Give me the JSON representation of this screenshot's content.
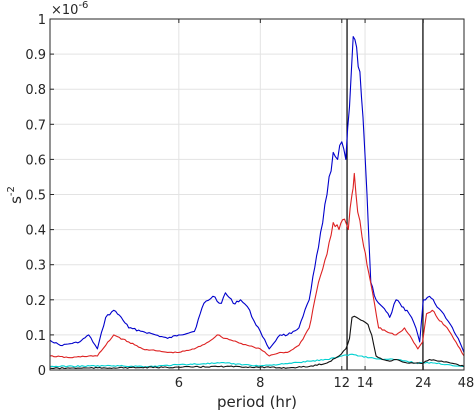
{
  "chart_data": {
    "type": "line",
    "xlabel": "period (hr)",
    "ylabel": "s",
    "ylabel_exponent": "-2",
    "y_multiplier_base": "×10",
    "y_multiplier_exponent": "-6",
    "x_scale": "reciprocal",
    "xlim": [
      4.3,
      48
    ],
    "ylim": [
      0,
      1
    ],
    "grid": true,
    "legend": "none",
    "x_ticks": [
      6,
      8,
      12,
      14,
      24,
      48
    ],
    "y_ticks": [
      0,
      0.1,
      0.2,
      0.3,
      0.4,
      0.5,
      0.6,
      0.7,
      0.8,
      0.9,
      1
    ],
    "y_tick_labels": [
      "0",
      "0.1",
      "0.2",
      "0.3",
      "0.4",
      "0.5",
      "0.6",
      "0.7",
      "0.8",
      "0.9",
      "1"
    ],
    "vertical_lines": [
      12.4,
      23.9
    ],
    "series": [
      {
        "color": "#0000cc",
        "points": [
          [
            4.3,
            0.085
          ],
          [
            4.4,
            0.07
          ],
          [
            4.5,
            0.075
          ],
          [
            4.6,
            0.08
          ],
          [
            4.7,
            0.1
          ],
          [
            4.8,
            0.06
          ],
          [
            4.9,
            0.15
          ],
          [
            5.0,
            0.17
          ],
          [
            5.1,
            0.15
          ],
          [
            5.2,
            0.12
          ],
          [
            5.4,
            0.11
          ],
          [
            5.6,
            0.1
          ],
          [
            5.8,
            0.09
          ],
          [
            6.0,
            0.1
          ],
          [
            6.3,
            0.11
          ],
          [
            6.5,
            0.19
          ],
          [
            6.7,
            0.21
          ],
          [
            6.9,
            0.19
          ],
          [
            7.0,
            0.22
          ],
          [
            7.2,
            0.19
          ],
          [
            7.4,
            0.2
          ],
          [
            7.6,
            0.18
          ],
          [
            7.8,
            0.14
          ],
          [
            8.0,
            0.11
          ],
          [
            8.3,
            0.06
          ],
          [
            8.7,
            0.1
          ],
          [
            9.0,
            0.1
          ],
          [
            9.5,
            0.12
          ],
          [
            10.0,
            0.2
          ],
          [
            10.5,
            0.35
          ],
          [
            11.0,
            0.5
          ],
          [
            11.4,
            0.62
          ],
          [
            11.7,
            0.6
          ],
          [
            12.0,
            0.65
          ],
          [
            12.3,
            0.6
          ],
          [
            12.6,
            0.75
          ],
          [
            12.9,
            0.95
          ],
          [
            13.2,
            0.92
          ],
          [
            13.5,
            0.85
          ],
          [
            13.8,
            0.72
          ],
          [
            14.2,
            0.5
          ],
          [
            14.6,
            0.25
          ],
          [
            15.2,
            0.2
          ],
          [
            16.0,
            0.18
          ],
          [
            17.0,
            0.15
          ],
          [
            18.0,
            0.2
          ],
          [
            19.0,
            0.18
          ],
          [
            20.0,
            0.17
          ],
          [
            21.0,
            0.15
          ],
          [
            22.0,
            0.12
          ],
          [
            23.0,
            0.08
          ],
          [
            24.0,
            0.2
          ],
          [
            26.0,
            0.21
          ],
          [
            28.0,
            0.19
          ],
          [
            32.0,
            0.16
          ],
          [
            36.0,
            0.13
          ],
          [
            42.0,
            0.09
          ],
          [
            48.0,
            0.05
          ]
        ]
      },
      {
        "color": "#dd2222",
        "points": [
          [
            4.3,
            0.04
          ],
          [
            4.5,
            0.035
          ],
          [
            4.7,
            0.04
          ],
          [
            4.8,
            0.04
          ],
          [
            4.9,
            0.07
          ],
          [
            5.0,
            0.1
          ],
          [
            5.2,
            0.08
          ],
          [
            5.4,
            0.06
          ],
          [
            5.6,
            0.055
          ],
          [
            5.8,
            0.05
          ],
          [
            6.0,
            0.05
          ],
          [
            6.3,
            0.06
          ],
          [
            6.6,
            0.08
          ],
          [
            6.8,
            0.1
          ],
          [
            7.0,
            0.09
          ],
          [
            7.3,
            0.08
          ],
          [
            7.6,
            0.07
          ],
          [
            8.0,
            0.06
          ],
          [
            8.3,
            0.04
          ],
          [
            8.7,
            0.05
          ],
          [
            9.0,
            0.05
          ],
          [
            9.5,
            0.07
          ],
          [
            10.0,
            0.12
          ],
          [
            10.5,
            0.25
          ],
          [
            11.0,
            0.33
          ],
          [
            11.4,
            0.42
          ],
          [
            11.8,
            0.4
          ],
          [
            12.2,
            0.43
          ],
          [
            12.5,
            0.4
          ],
          [
            12.8,
            0.5
          ],
          [
            13.0,
            0.56
          ],
          [
            13.3,
            0.45
          ],
          [
            13.7,
            0.38
          ],
          [
            14.2,
            0.3
          ],
          [
            14.8,
            0.22
          ],
          [
            15.5,
            0.12
          ],
          [
            16.5,
            0.11
          ],
          [
            18.0,
            0.1
          ],
          [
            19.5,
            0.12
          ],
          [
            21.0,
            0.09
          ],
          [
            22.5,
            0.06
          ],
          [
            23.8,
            0.08
          ],
          [
            25.0,
            0.16
          ],
          [
            27.0,
            0.17
          ],
          [
            30.0,
            0.14
          ],
          [
            34.0,
            0.12
          ],
          [
            40.0,
            0.08
          ],
          [
            48.0,
            0.04
          ]
        ]
      },
      {
        "color": "#00d0d0",
        "points": [
          [
            4.3,
            0.01
          ],
          [
            5.0,
            0.012
          ],
          [
            5.5,
            0.01
          ],
          [
            6.0,
            0.015
          ],
          [
            6.5,
            0.018
          ],
          [
            7.0,
            0.02
          ],
          [
            7.5,
            0.015
          ],
          [
            8.0,
            0.012
          ],
          [
            9.0,
            0.018
          ],
          [
            10.0,
            0.025
          ],
          [
            11.0,
            0.03
          ],
          [
            12.0,
            0.04
          ],
          [
            12.8,
            0.045
          ],
          [
            13.5,
            0.04
          ],
          [
            14.5,
            0.035
          ],
          [
            16.0,
            0.03
          ],
          [
            18.0,
            0.03
          ],
          [
            20.0,
            0.025
          ],
          [
            22.0,
            0.02
          ],
          [
            24.0,
            0.02
          ],
          [
            28.0,
            0.02
          ],
          [
            35.0,
            0.015
          ],
          [
            48.0,
            0.01
          ]
        ]
      },
      {
        "color": "#111111",
        "points": [
          [
            4.3,
            0.005
          ],
          [
            5.0,
            0.006
          ],
          [
            6.0,
            0.008
          ],
          [
            7.0,
            0.01
          ],
          [
            8.0,
            0.008
          ],
          [
            9.0,
            0.006
          ],
          [
            10.0,
            0.01
          ],
          [
            11.0,
            0.02
          ],
          [
            11.8,
            0.04
          ],
          [
            12.3,
            0.06
          ],
          [
            12.6,
            0.09
          ],
          [
            12.8,
            0.15
          ],
          [
            13.2,
            0.15
          ],
          [
            13.8,
            0.14
          ],
          [
            14.3,
            0.13
          ],
          [
            14.7,
            0.1
          ],
          [
            15.2,
            0.04
          ],
          [
            16.0,
            0.03
          ],
          [
            17.0,
            0.025
          ],
          [
            18.0,
            0.03
          ],
          [
            20.0,
            0.02
          ],
          [
            22.0,
            0.02
          ],
          [
            24.0,
            0.02
          ],
          [
            26.0,
            0.03
          ],
          [
            30.0,
            0.025
          ],
          [
            36.0,
            0.02
          ],
          [
            48.0,
            0.01
          ]
        ]
      }
    ]
  }
}
